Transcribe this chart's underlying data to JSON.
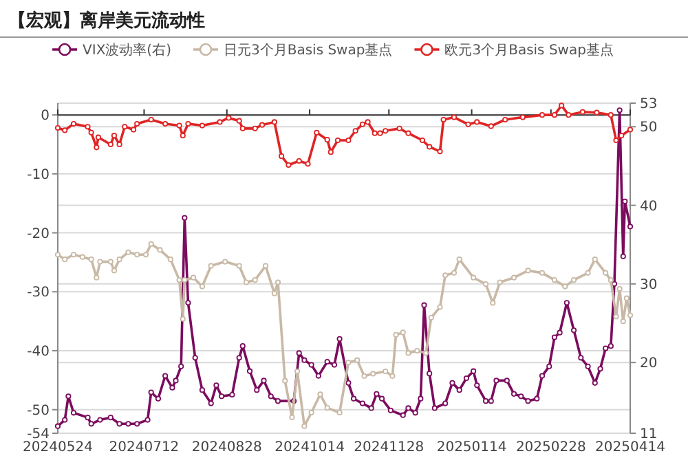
{
  "chart_data": {
    "type": "line",
    "title": "【宏观】离岸美元流动性",
    "legend": "top",
    "grid": "y",
    "marker": "circle",
    "line_style": "solid",
    "xlim": [
      "2024-05-24",
      "2025-04-14"
    ],
    "xticks": [
      {
        "value": "2024-05-24",
        "label": "20240524"
      },
      {
        "value": "2024-07-12",
        "label": "20240712"
      },
      {
        "value": "2024-08-28",
        "label": "20240828"
      },
      {
        "value": "2024-10-14",
        "label": "20241014"
      },
      {
        "value": "2024-11-28",
        "label": "20241128"
      },
      {
        "value": "2025-01-14",
        "label": "20250114"
      },
      {
        "value": "2025-02-28",
        "label": "20250228"
      },
      {
        "value": "2025-04-14",
        "label": "20250414"
      }
    ],
    "ylim": [
      -54,
      2
    ],
    "yticks": [
      0,
      -10,
      -20,
      -30,
      -40,
      -50,
      -54
    ],
    "y2lim": [
      11,
      53
    ],
    "y2ticks": [
      11,
      20,
      30,
      40,
      50,
      53
    ],
    "series": [
      {
        "name": "VIX波动率(右)",
        "color": "#7b0c5e",
        "axis": "y2",
        "x": [
          "2024-05-24",
          "2024-05-28",
          "2024-05-30",
          "2024-06-02",
          "2024-06-10",
          "2024-06-12",
          "2024-06-17",
          "2024-06-23",
          "2024-06-28",
          "2024-07-03",
          "2024-07-08",
          "2024-07-14",
          "2024-07-16",
          "2024-07-20",
          "2024-07-24",
          "2024-07-28",
          "2024-07-30",
          "2024-08-02",
          "2024-08-04",
          "2024-08-06",
          "2024-08-10",
          "2024-08-14",
          "2024-08-19",
          "2024-08-22",
          "2024-08-25",
          "2024-08-31",
          "2024-09-04",
          "2024-09-06",
          "2024-09-10",
          "2024-09-14",
          "2024-09-18",
          "2024-09-22",
          "2024-09-26",
          "2024-10-05",
          "2024-10-08",
          "2024-10-11",
          "2024-10-15",
          "2024-10-19",
          "2024-10-24",
          "2024-10-28",
          "2024-10-31",
          "2024-11-05",
          "2024-11-08",
          "2024-11-13",
          "2024-11-18",
          "2024-11-21",
          "2024-11-24",
          "2024-11-29",
          "2024-12-06",
          "2024-12-09",
          "2024-12-13",
          "2024-12-16",
          "2024-12-18",
          "2024-12-21",
          "2024-12-24",
          "2024-12-30",
          "2025-01-03",
          "2025-01-07",
          "2025-01-11",
          "2025-01-15",
          "2025-01-17",
          "2025-01-22",
          "2025-01-25",
          "2025-01-28",
          "2025-02-03",
          "2025-02-07",
          "2025-02-11",
          "2025-02-15",
          "2025-02-20",
          "2025-02-23",
          "2025-02-27",
          "2025-03-02",
          "2025-03-05",
          "2025-03-09",
          "2025-03-13",
          "2025-03-17",
          "2025-03-21",
          "2025-03-25",
          "2025-03-28",
          "2025-03-31",
          "2025-04-03",
          "2025-04-05",
          "2025-04-08",
          "2025-04-10",
          "2025-04-11",
          "2025-04-14"
        ],
        "values": [
          11.9,
          12.7,
          15.7,
          13.6,
          13,
          12.2,
          12.7,
          13,
          12.2,
          12.2,
          12.2,
          12.7,
          16.2,
          15.4,
          18.3,
          16.8,
          17.7,
          19.5,
          38.4,
          27.6,
          20.6,
          16.5,
          14.8,
          17.1,
          15.7,
          15.9,
          20.6,
          22.1,
          18.9,
          16.5,
          17.7,
          15.7,
          15.1,
          15.1,
          21.2,
          20.3,
          19.7,
          18.3,
          20.1,
          19.7,
          23,
          17.4,
          15.4,
          14.8,
          14.2,
          16,
          15.4,
          13.9,
          13.3,
          14.2,
          13.6,
          15.4,
          27.3,
          18.6,
          14.2,
          14.8,
          17.4,
          16.5,
          18,
          18.9,
          17.1,
          15.1,
          15.1,
          17.7,
          17.7,
          16,
          15.7,
          15.1,
          15.4,
          18.3,
          19.5,
          23.2,
          23.8,
          27.6,
          24.1,
          20.6,
          19.5,
          17.4,
          19.2,
          21.8,
          22.1,
          30,
          52.1,
          33.5,
          40.5,
          37.3
        ]
      },
      {
        "name": "日元3个月Basis Swap基点",
        "color": "#c8b9a6",
        "x": [
          "2024-05-24",
          "2024-05-28",
          "2024-06-02",
          "2024-06-07",
          "2024-06-12",
          "2024-06-15",
          "2024-06-17",
          "2024-06-23",
          "2024-06-25",
          "2024-06-28",
          "2024-07-03",
          "2024-07-08",
          "2024-07-13",
          "2024-07-16",
          "2024-07-21",
          "2024-07-27",
          "2024-08-01",
          "2024-08-03",
          "2024-08-04",
          "2024-08-09",
          "2024-08-14",
          "2024-08-19",
          "2024-08-27",
          "2024-09-04",
          "2024-09-08",
          "2024-09-13",
          "2024-09-19",
          "2024-09-24",
          "2024-09-26",
          "2024-09-30",
          "2024-10-04",
          "2024-10-07",
          "2024-10-11",
          "2024-10-15",
          "2024-10-20",
          "2024-10-24",
          "2024-10-31",
          "2024-11-05",
          "2024-11-10",
          "2024-11-14",
          "2024-11-19",
          "2024-11-26",
          "2024-11-30",
          "2024-12-02",
          "2024-12-06",
          "2024-12-09",
          "2024-12-14",
          "2024-12-19",
          "2024-12-22",
          "2024-12-27",
          "2024-12-30",
          "2025-01-04",
          "2025-01-07",
          "2025-01-15",
          "2025-01-22",
          "2025-01-26",
          "2025-01-30",
          "2025-02-07",
          "2025-02-15",
          "2025-02-23",
          "2025-03-02",
          "2025-03-08",
          "2025-03-13",
          "2025-03-21",
          "2025-03-25",
          "2025-03-31",
          "2025-04-03",
          "2025-04-06",
          "2025-04-08",
          "2025-04-10",
          "2025-04-12",
          "2025-04-14"
        ],
        "values": [
          -23.7,
          -24.5,
          -23.7,
          -24.1,
          -24.5,
          -27.6,
          -24.9,
          -24.9,
          -26.4,
          -24.5,
          -23.3,
          -23.7,
          -23.7,
          -21.9,
          -22.9,
          -24.5,
          -28,
          -34.6,
          -28,
          -27.6,
          -29.1,
          -25.6,
          -24.9,
          -25.6,
          -28.4,
          -28,
          -25.6,
          -30.3,
          -28.4,
          -45.1,
          -51.3,
          -43.5,
          -52.8,
          -50.5,
          -47.4,
          -49.7,
          -50.5,
          -42,
          -41.6,
          -44.3,
          -43.9,
          -43.5,
          -44.3,
          -37.3,
          -36.9,
          -40.4,
          -40,
          -40.4,
          -34.4,
          -32.6,
          -27.2,
          -26.8,
          -24.5,
          -27.6,
          -28.7,
          -31.9,
          -28.4,
          -27.6,
          -26.4,
          -26.8,
          -28,
          -29.1,
          -28,
          -26.8,
          -24.5,
          -26.8,
          -28,
          -34.2,
          -29.5,
          -35,
          -31.1,
          -34
        ]
      },
      {
        "name": "欧元3个月Basis Swap基点",
        "color": "#e02424",
        "x": [
          "2024-05-24",
          "2024-05-28",
          "2024-06-02",
          "2024-06-10",
          "2024-06-12",
          "2024-06-15",
          "2024-06-16",
          "2024-06-23",
          "2024-06-25",
          "2024-06-28",
          "2024-07-01",
          "2024-07-06",
          "2024-07-08",
          "2024-07-16",
          "2024-07-24",
          "2024-08-01",
          "2024-08-03",
          "2024-08-06",
          "2024-08-14",
          "2024-08-24",
          "2024-08-29",
          "2024-09-04",
          "2024-09-06",
          "2024-09-13",
          "2024-09-17",
          "2024-09-24",
          "2024-09-28",
          "2024-10-02",
          "2024-10-08",
          "2024-10-13",
          "2024-10-18",
          "2024-10-24",
          "2024-10-26",
          "2024-10-30",
          "2024-11-05",
          "2024-11-09",
          "2024-11-13",
          "2024-11-16",
          "2024-11-20",
          "2024-11-23",
          "2024-11-26",
          "2024-12-04",
          "2024-12-09",
          "2024-12-17",
          "2024-12-21",
          "2024-12-27",
          "2024-12-29",
          "2025-01-04",
          "2025-01-12",
          "2025-01-17",
          "2025-01-25",
          "2025-02-02",
          "2025-02-12",
          "2025-02-23",
          "2025-03-02",
          "2025-03-06",
          "2025-03-10",
          "2025-03-18",
          "2025-03-26",
          "2025-04-03",
          "2025-04-06",
          "2025-04-09",
          "2025-04-14"
        ],
        "values": [
          -2.2,
          -2.6,
          -1.5,
          -2,
          -3,
          -5.5,
          -3.8,
          -5,
          -3.5,
          -5,
          -2,
          -2.5,
          -1.5,
          -0.8,
          -1.5,
          -1.8,
          -3.5,
          -1.5,
          -1.8,
          -1.2,
          -0.5,
          -1,
          -2.3,
          -2.3,
          -1.7,
          -1.2,
          -7,
          -8.5,
          -7.8,
          -8.3,
          -3,
          -4.2,
          -6.3,
          -4.3,
          -4.3,
          -2.7,
          -1.6,
          -1.2,
          -3.1,
          -3.1,
          -2.7,
          -2.3,
          -3.1,
          -4.3,
          -5.4,
          -6.2,
          -0.8,
          -0.4,
          -1.6,
          -1.2,
          -1.9,
          -0.8,
          -0.4,
          0,
          0,
          1.6,
          0,
          0.5,
          0.4,
          0,
          -4.3,
          -3.5,
          -2.5
        ]
      }
    ]
  }
}
